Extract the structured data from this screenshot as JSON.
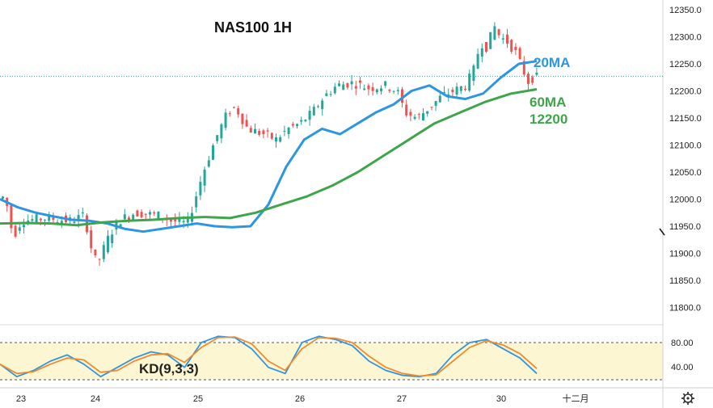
{
  "chart_data": [
    {
      "type": "candlestick",
      "title": "NAS100 1H",
      "ylim": [
        11760,
        12360
      ],
      "y_ticks": [
        "12350.0",
        "12300.0",
        "12250.0",
        "12200.0",
        "12150.0",
        "12100.0",
        "12050.0",
        "12000.0",
        "11950.0",
        "11900.0",
        "11850.0",
        "11800.0"
      ],
      "x_ticks": [
        "23",
        "24",
        "25",
        "26",
        "27",
        "30",
        "十二月"
      ],
      "current_price": 12227,
      "annotations": {
        "ma20": "20MA",
        "ma60": "60MA",
        "ma60_value": "12200"
      },
      "series": [
        {
          "name": "20MA",
          "color": "#2e95e0",
          "values": [
            12000,
            11985,
            11975,
            11968,
            11962,
            11960,
            11955,
            11945,
            11940,
            11945,
            11950,
            11955,
            11950,
            11948,
            11950,
            11990,
            12060,
            12110,
            12130,
            12120,
            12140,
            12160,
            12175,
            12200,
            12210,
            12190,
            12185,
            12195,
            12225,
            12250,
            12255
          ]
        },
        {
          "name": "60MA",
          "color": "#3fa54a",
          "values": [
            11955,
            11956,
            11955,
            11952,
            11957,
            11960,
            11962,
            11965,
            11967,
            11965,
            11975,
            11990,
            12005,
            12025,
            12050,
            12080,
            12110,
            12140,
            12160,
            12180,
            12195,
            12203
          ]
        }
      ]
    },
    {
      "type": "line",
      "title": "KD(9,3,3)",
      "ylim": [
        20,
        100
      ],
      "y_ticks": [
        "80.00",
        "40.00"
      ],
      "series": [
        {
          "name": "K",
          "color": "#2e95e0",
          "values": [
            45,
            25,
            35,
            50,
            60,
            45,
            25,
            40,
            55,
            65,
            60,
            40,
            80,
            90,
            88,
            70,
            40,
            30,
            80,
            90,
            85,
            75,
            50,
            35,
            27,
            25,
            30,
            60,
            80,
            85,
            70,
            55,
            30
          ]
        },
        {
          "name": "D",
          "color": "#f08a2e",
          "values": [
            45,
            30,
            33,
            45,
            55,
            52,
            32,
            35,
            50,
            60,
            62,
            48,
            72,
            88,
            89,
            78,
            50,
            35,
            70,
            88,
            87,
            80,
            58,
            40,
            30,
            26,
            28,
            50,
            72,
            83,
            76,
            62,
            38
          ]
        }
      ]
    }
  ]
}
